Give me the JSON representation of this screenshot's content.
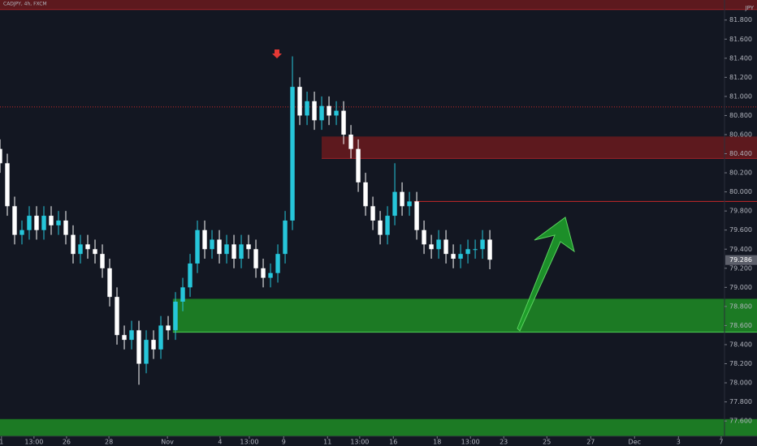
{
  "chart_data": {
    "type": "candlestick",
    "title": "CADJPY, 4h, FXCM",
    "y_unit": "JPY",
    "up_color": "#26c6da",
    "down_color": "#ffffff",
    "background": "#131722",
    "x": [
      0,
      2,
      4,
      6,
      8,
      10,
      12,
      14,
      16,
      18,
      20,
      22,
      24,
      26,
      28,
      30,
      32,
      34,
      36,
      38,
      40,
      42,
      44,
      46,
      48,
      50,
      52,
      54,
      56,
      58,
      60,
      62,
      64,
      66,
      68,
      70,
      72,
      74,
      76,
      78,
      80,
      82,
      84,
      86,
      88,
      90,
      92,
      94,
      96,
      98,
      100,
      102,
      104,
      106,
      108,
      110,
      112,
      114,
      116,
      118,
      120,
      122,
      124,
      126,
      128,
      130,
      132,
      134
    ],
    "open": [
      80.45,
      80.3,
      79.85,
      79.55,
      79.6,
      79.75,
      79.6,
      79.75,
      79.65,
      79.7,
      79.55,
      79.35,
      79.45,
      79.4,
      79.35,
      79.2,
      78.9,
      78.5,
      78.45,
      78.55,
      78.2,
      78.45,
      78.35,
      78.6,
      78.55,
      78.85,
      79.0,
      79.25,
      79.6,
      79.4,
      79.5,
      79.35,
      79.45,
      79.3,
      79.45,
      79.4,
      79.2,
      79.1,
      79.15,
      79.35,
      79.7,
      81.1,
      80.8,
      80.95,
      80.75,
      80.9,
      80.8,
      80.85,
      80.6,
      80.45,
      80.1,
      79.85,
      79.7,
      79.55,
      79.75,
      80.0,
      79.85,
      79.9,
      79.6,
      79.45,
      79.4,
      79.5,
      79.35,
      79.3,
      79.35,
      79.4,
      79.4,
      79.5
    ],
    "high": [
      80.55,
      80.4,
      79.95,
      79.7,
      79.85,
      79.85,
      79.85,
      79.85,
      79.8,
      79.8,
      79.65,
      79.55,
      79.55,
      79.5,
      79.45,
      79.3,
      79.0,
      78.6,
      78.65,
      78.65,
      78.55,
      78.55,
      78.7,
      78.7,
      78.95,
      79.1,
      79.35,
      79.7,
      79.7,
      79.6,
      79.6,
      79.55,
      79.55,
      79.55,
      79.55,
      79.5,
      79.3,
      79.25,
      79.45,
      79.8,
      81.42,
      81.2,
      81.05,
      81.05,
      81.0,
      81.0,
      80.95,
      80.95,
      80.7,
      80.55,
      80.2,
      79.95,
      79.8,
      79.85,
      80.3,
      80.1,
      80.0,
      80.0,
      79.7,
      79.55,
      79.6,
      79.6,
      79.45,
      79.45,
      79.5,
      79.5,
      79.6,
      79.6
    ],
    "low": [
      80.2,
      79.75,
      79.45,
      79.45,
      79.5,
      79.5,
      79.5,
      79.55,
      79.55,
      79.45,
      79.25,
      79.25,
      79.3,
      79.25,
      79.1,
      78.8,
      78.4,
      78.35,
      78.35,
      77.98,
      78.1,
      78.25,
      78.25,
      78.45,
      78.45,
      78.75,
      78.9,
      79.15,
      79.3,
      79.3,
      79.25,
      79.25,
      79.2,
      79.2,
      79.3,
      79.1,
      79.0,
      79.0,
      79.05,
      79.25,
      79.6,
      80.7,
      80.7,
      80.65,
      80.65,
      80.7,
      80.7,
      80.5,
      80.35,
      80.0,
      79.75,
      79.6,
      79.45,
      79.45,
      79.65,
      79.75,
      79.75,
      79.5,
      79.35,
      79.3,
      79.3,
      79.25,
      79.2,
      79.2,
      79.25,
      79.3,
      79.3,
      79.19
    ],
    "close": [
      80.3,
      79.85,
      79.55,
      79.6,
      79.75,
      79.6,
      79.75,
      79.65,
      79.7,
      79.55,
      79.35,
      79.45,
      79.4,
      79.35,
      79.2,
      78.9,
      78.5,
      78.45,
      78.55,
      78.2,
      78.45,
      78.35,
      78.6,
      78.55,
      78.85,
      79.0,
      79.25,
      79.6,
      79.4,
      79.5,
      79.35,
      79.45,
      79.3,
      79.45,
      79.4,
      79.2,
      79.1,
      79.15,
      79.35,
      79.7,
      81.1,
      80.8,
      80.95,
      80.75,
      80.9,
      80.8,
      80.85,
      80.6,
      80.45,
      80.1,
      79.85,
      79.7,
      79.55,
      79.75,
      80.0,
      79.85,
      79.9,
      79.6,
      79.45,
      79.4,
      79.5,
      79.35,
      79.3,
      79.35,
      79.4,
      79.4,
      79.5,
      79.29
    ],
    "xlim": [
      0,
      198.2
    ],
    "ylim": [
      77.44,
      82.01
    ],
    "xticks": [
      {
        "value": 0.4,
        "label": "1"
      },
      {
        "value": 9.3,
        "label": "13:00"
      },
      {
        "value": 18.2,
        "label": "26"
      },
      {
        "value": 29.8,
        "label": "28"
      },
      {
        "value": 45.8,
        "label": "Nov"
      },
      {
        "value": 60.2,
        "label": "4"
      },
      {
        "value": 68.2,
        "label": "13:00"
      },
      {
        "value": 77.6,
        "label": "9"
      },
      {
        "value": 89.6,
        "label": "11"
      },
      {
        "value": 98.4,
        "label": "13:00"
      },
      {
        "value": 107.6,
        "label": "16"
      },
      {
        "value": 119.6,
        "label": "18"
      },
      {
        "value": 128.7,
        "label": "13:00"
      },
      {
        "value": 137.8,
        "label": "23"
      },
      {
        "value": 149.6,
        "label": "25"
      },
      {
        "value": 161.6,
        "label": "27"
      },
      {
        "value": 173.6,
        "label": "Dec"
      },
      {
        "value": 185.6,
        "label": "3"
      },
      {
        "value": 197.3,
        "label": "7"
      }
    ],
    "yticks": [
      {
        "value": 77.6,
        "label": "77.600"
      },
      {
        "value": 77.8,
        "label": "77.800"
      },
      {
        "value": 78.0,
        "label": "78.000"
      },
      {
        "value": 78.2,
        "label": "78.200"
      },
      {
        "value": 78.4,
        "label": "78.400"
      },
      {
        "value": 78.6,
        "label": "78.600"
      },
      {
        "value": 78.8,
        "label": "78.800"
      },
      {
        "value": 79.0,
        "label": "79.000"
      },
      {
        "value": 79.2,
        "label": "79.200"
      },
      {
        "value": 79.4,
        "label": "79.400"
      },
      {
        "value": 79.6,
        "label": "79.600"
      },
      {
        "value": 79.8,
        "label": "79.800"
      },
      {
        "value": 80.0,
        "label": "80.000"
      },
      {
        "value": 80.2,
        "label": "80.200"
      },
      {
        "value": 80.4,
        "label": "80.400"
      },
      {
        "value": 80.6,
        "label": "80.600"
      },
      {
        "value": 80.8,
        "label": "80.800"
      },
      {
        "value": 81.0,
        "label": "81.000"
      },
      {
        "value": 81.2,
        "label": "81.200"
      },
      {
        "value": 81.4,
        "label": "81.400"
      },
      {
        "value": 81.6,
        "label": "81.600"
      },
      {
        "value": 81.8,
        "label": "81.800"
      }
    ],
    "last_price": {
      "value": 79.286,
      "label": "79.286"
    },
    "zones": [
      {
        "x_start": 0,
        "low": 81.91,
        "high": 82.01,
        "color": "#6b1a1d"
      },
      {
        "x_start": 88,
        "low": 80.35,
        "high": 80.58,
        "color": "#6b1a1d"
      },
      {
        "x_start": 47.3,
        "low": 78.53,
        "high": 78.88,
        "color": "#1e8c24"
      },
      {
        "x_start": 0,
        "low": 77.44,
        "high": 77.62,
        "color": "#1e8c24"
      }
    ],
    "levels": [
      {
        "x_start": 113.3,
        "value": 79.9,
        "color": "#c62828",
        "dash": false
      },
      {
        "x_start": 0,
        "value": 80.89,
        "color": "#c62828",
        "dash": true
      }
    ]
  }
}
